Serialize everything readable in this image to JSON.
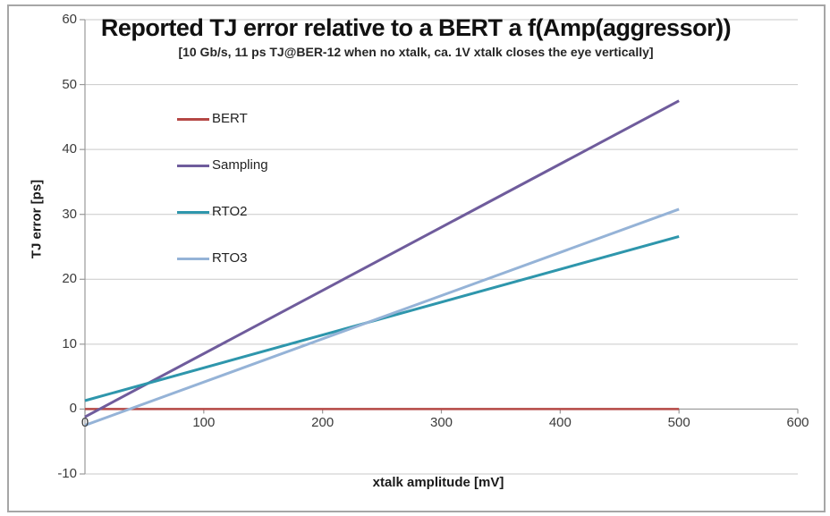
{
  "chart_data": {
    "type": "line",
    "title": "Reported TJ error relative to a BERT a f(Amp(aggressor))",
    "subtitle": "[10 Gb/s, 11 ps TJ@BER-12 when no xtalk, ca. 1V xtalk closes the eye vertically]",
    "xlabel": "xtalk amplitude [mV]",
    "ylabel": "TJ error [ps]",
    "xlim": [
      0,
      600
    ],
    "ylim": [
      -10,
      60
    ],
    "x_ticks": [
      0,
      100,
      200,
      300,
      400,
      500,
      600
    ],
    "y_ticks": [
      -10,
      0,
      10,
      20,
      30,
      40,
      50,
      60
    ],
    "grid": "horizontal",
    "legend_position": "inside-top-left",
    "x": [
      0,
      500
    ],
    "series": [
      {
        "name": "BERT",
        "color": "#b54845",
        "width": 2.5,
        "values": [
          0,
          0
        ]
      },
      {
        "name": "Sampling",
        "color": "#6f5c9c",
        "width": 3,
        "values": [
          -1.2,
          47.5
        ]
      },
      {
        "name": "RTO2",
        "color": "#2e96ac",
        "width": 3,
        "values": [
          1.3,
          26.6
        ]
      },
      {
        "name": "RTO3",
        "color": "#95b3d7",
        "width": 3,
        "values": [
          -2.5,
          30.8
        ]
      }
    ],
    "colors": {
      "gridline": "#c9c9c9",
      "axis": "#999999",
      "tick_text": "#3b3b3b",
      "title_text": "#111111",
      "frame_border": "#a6a6a6",
      "background": "#ffffff"
    }
  }
}
